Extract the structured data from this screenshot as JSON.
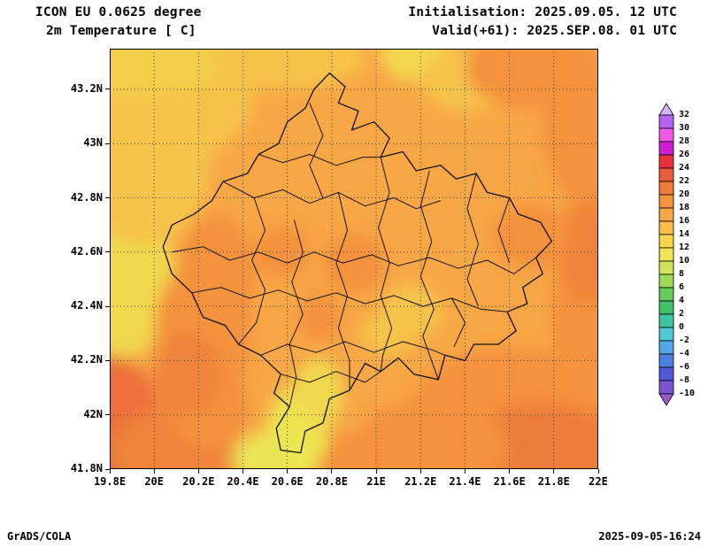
{
  "header": {
    "line1": "ICON EU 0.0625 degree",
    "line2": "2m Temperature [ C]",
    "init_line": "Initialisation: 2025.09.05. 12 UTC",
    "valid_line": "Valid(+61): 2025.SEP.08. 01 UTC"
  },
  "footer": {
    "left": "GrADS/COLA",
    "right": "2025-09-05-16:24"
  },
  "chart_data": {
    "type": "heatmap",
    "title": "ICON EU 0.0625 degree 2m Temperature [ C]",
    "model": "ICON EU",
    "resolution_degree": "0.0625",
    "variable": "2m Temperature [ C]",
    "initialisation": "2025.09.05. 12 UTC",
    "valid": "2025.SEP.08. 01 UTC",
    "forecast_hour": "+61",
    "x_axis": {
      "label": "longitude",
      "range": [
        19.8,
        22.0
      ],
      "values": [
        19.8,
        20,
        20.2,
        20.4,
        20.6,
        20.8,
        21,
        21.2,
        21.4,
        21.6,
        21.8,
        22
      ],
      "labels": [
        "19.8E",
        "20E",
        "20.2E",
        "20.4E",
        "20.6E",
        "20.8E",
        "21E",
        "21.2E",
        "21.4E",
        "21.6E",
        "21.8E",
        "22E"
      ]
    },
    "y_axis": {
      "label": "latitude",
      "range": [
        41.8,
        43.35
      ],
      "values": [
        41.8,
        42,
        42.2,
        42.4,
        42.6,
        42.8,
        43,
        43.2
      ],
      "labels": [
        "41.8N",
        "42N",
        "42.2N",
        "42.4N",
        "42.6N",
        "42.8N",
        "43N",
        "43.2N"
      ]
    },
    "grid": {
      "style": "dotted",
      "lon_lines": [
        20,
        20.2,
        20.4,
        20.6,
        20.8,
        21,
        21.2,
        21.4,
        21.6,
        21.8
      ],
      "lat_lines": [
        42,
        42.2,
        42.4,
        42.6,
        42.8,
        43,
        43.2
      ]
    },
    "colorbar": {
      "unit": "C",
      "levels": [
        32,
        30,
        28,
        26,
        24,
        22,
        20,
        18,
        16,
        14,
        12,
        10,
        8,
        6,
        4,
        2,
        0,
        -2,
        -4,
        -6,
        -8,
        -10
      ],
      "above_color": "#d8b4f8",
      "segment_colors": [
        "#b565f0",
        "#ef5ae8",
        "#cc1fd4",
        "#e8323c",
        "#ea5c3c",
        "#ee7c3a",
        "#f4923e",
        "#f8a746",
        "#fabf4b",
        "#f7d74e",
        "#f0e655",
        "#cfe25a",
        "#9ed95c",
        "#66cc5e",
        "#3fbf6a",
        "#3ec49e",
        "#4ec8d4",
        "#52a9e4",
        "#4d7fe0",
        "#5158d8",
        "#7a55d0"
      ],
      "below_color": "#9b59c8"
    },
    "field": {
      "base_color": "#f8a746",
      "base_level": "16-18 C",
      "blobs": [
        [
          19.72,
          43.05,
          0.3,
          0.5,
          "#f0d94f"
        ],
        [
          19.75,
          42.7,
          0.22,
          0.4,
          "#eee34f"
        ],
        [
          19.82,
          42.5,
          0.28,
          0.3,
          "#f0d94f"
        ],
        [
          19.95,
          42.92,
          0.3,
          0.3,
          "#f6c44a"
        ],
        [
          20.05,
          43.2,
          0.4,
          0.28,
          "#f6c44a"
        ],
        [
          19.9,
          43.33,
          0.45,
          0.15,
          "#f2cf4c"
        ],
        [
          20.6,
          43.32,
          0.35,
          0.12,
          "#f6c44a"
        ],
        [
          21.18,
          43.33,
          0.16,
          0.1,
          "#f2d94e"
        ],
        [
          21.4,
          43.24,
          0.2,
          0.12,
          "#f6c44a"
        ],
        [
          21.7,
          43.28,
          0.3,
          0.15,
          "#f4923e"
        ],
        [
          21.97,
          43.05,
          0.22,
          0.28,
          "#f4923e"
        ],
        [
          21.97,
          42.4,
          0.18,
          0.45,
          "#f4923e"
        ],
        [
          21.95,
          42.6,
          0.12,
          0.18,
          "#ef843a"
        ],
        [
          21.7,
          42.66,
          0.18,
          0.12,
          "#f4923e"
        ],
        [
          21.6,
          42.0,
          0.45,
          0.25,
          "#f4923e"
        ],
        [
          21.75,
          41.86,
          0.35,
          0.18,
          "#ee7c3a"
        ],
        [
          21.25,
          41.88,
          0.35,
          0.18,
          "#f4923e"
        ],
        [
          21.05,
          41.82,
          0.45,
          0.12,
          "#f4923e"
        ],
        [
          19.85,
          41.82,
          0.28,
          0.2,
          "#e8463c"
        ],
        [
          19.8,
          42.0,
          0.22,
          0.22,
          "#ee6f3a"
        ],
        [
          20.1,
          41.85,
          0.3,
          0.18,
          "#ef843a"
        ],
        [
          20.25,
          42.02,
          0.18,
          0.15,
          "#f4923e"
        ],
        [
          20.22,
          42.3,
          0.22,
          0.28,
          "#f4923e"
        ],
        [
          20.28,
          42.52,
          0.18,
          0.22,
          "#f4923e"
        ],
        [
          20.15,
          42.15,
          0.15,
          0.15,
          "#ef843a"
        ],
        [
          20.9,
          42.56,
          0.14,
          0.11,
          "#f4923e"
        ],
        [
          20.58,
          42.6,
          0.12,
          0.1,
          "#f4923e"
        ],
        [
          20.74,
          42.36,
          0.1,
          0.09,
          "#f4923e"
        ],
        [
          20.65,
          41.95,
          0.14,
          0.16,
          "#eee34f"
        ],
        [
          20.74,
          42.08,
          0.11,
          0.13,
          "#f0d94f"
        ],
        [
          20.55,
          41.84,
          0.2,
          0.1,
          "#ebe552"
        ],
        [
          21.16,
          42.38,
          0.14,
          0.1,
          "#f6c44a"
        ],
        [
          21.05,
          42.3,
          0.12,
          0.08,
          "#f6c44a"
        ]
      ]
    },
    "boundaries": {
      "outline": [
        [
          20.79,
          43.26
        ],
        [
          20.86,
          43.21
        ],
        [
          20.83,
          43.15
        ],
        [
          20.92,
          43.12
        ],
        [
          20.89,
          43.05
        ],
        [
          20.99,
          43.08
        ],
        [
          21.06,
          43.02
        ],
        [
          21.02,
          42.95
        ],
        [
          21.12,
          42.97
        ],
        [
          21.18,
          42.9
        ],
        [
          21.29,
          42.92
        ],
        [
          21.36,
          42.87
        ],
        [
          21.45,
          42.89
        ],
        [
          21.5,
          42.82
        ],
        [
          21.6,
          42.8
        ],
        [
          21.64,
          42.74
        ],
        [
          21.74,
          42.71
        ],
        [
          21.79,
          42.64
        ],
        [
          21.72,
          42.58
        ],
        [
          21.75,
          42.52
        ],
        [
          21.66,
          42.47
        ],
        [
          21.68,
          42.41
        ],
        [
          21.59,
          42.38
        ],
        [
          21.63,
          42.31
        ],
        [
          21.55,
          42.26
        ],
        [
          21.44,
          42.26
        ],
        [
          21.4,
          42.2
        ],
        [
          21.31,
          42.22
        ],
        [
          21.28,
          42.13
        ],
        [
          21.17,
          42.15
        ],
        [
          21.1,
          42.21
        ],
        [
          21.02,
          42.16
        ],
        [
          20.95,
          42.19
        ],
        [
          20.88,
          42.09
        ],
        [
          20.79,
          42.06
        ],
        [
          20.76,
          41.97
        ],
        [
          20.68,
          41.94
        ],
        [
          20.66,
          41.86
        ],
        [
          20.57,
          41.87
        ],
        [
          20.55,
          41.95
        ],
        [
          20.61,
          42.03
        ],
        [
          20.54,
          42.08
        ],
        [
          20.57,
          42.15
        ],
        [
          20.48,
          42.22
        ],
        [
          20.38,
          42.26
        ],
        [
          20.32,
          42.33
        ],
        [
          20.22,
          42.36
        ],
        [
          20.17,
          42.45
        ],
        [
          20.08,
          42.52
        ],
        [
          20.04,
          42.62
        ],
        [
          20.08,
          42.7
        ],
        [
          20.18,
          42.74
        ],
        [
          20.26,
          42.79
        ],
        [
          20.31,
          42.86
        ],
        [
          20.42,
          42.89
        ],
        [
          20.47,
          42.96
        ],
        [
          20.56,
          43.0
        ],
        [
          20.6,
          43.08
        ],
        [
          20.68,
          43.13
        ],
        [
          20.72,
          43.2
        ]
      ],
      "internal": [
        [
          [
            20.31,
            42.86
          ],
          [
            20.45,
            42.8
          ],
          [
            20.58,
            42.83
          ],
          [
            20.7,
            42.78
          ],
          [
            20.83,
            42.82
          ],
          [
            20.95,
            42.77
          ],
          [
            21.08,
            42.8
          ],
          [
            21.18,
            42.76
          ],
          [
            21.29,
            42.79
          ]
        ],
        [
          [
            20.08,
            42.6
          ],
          [
            20.22,
            42.62
          ],
          [
            20.34,
            42.57
          ],
          [
            20.47,
            42.6
          ],
          [
            20.6,
            42.56
          ],
          [
            20.72,
            42.6
          ],
          [
            20.85,
            42.56
          ],
          [
            20.98,
            42.59
          ],
          [
            21.1,
            42.55
          ],
          [
            21.24,
            42.58
          ],
          [
            21.37,
            42.54
          ],
          [
            21.5,
            42.57
          ],
          [
            21.62,
            42.52
          ],
          [
            21.72,
            42.58
          ]
        ],
        [
          [
            20.17,
            42.45
          ],
          [
            20.3,
            42.47
          ],
          [
            20.43,
            42.43
          ],
          [
            20.56,
            42.46
          ],
          [
            20.69,
            42.42
          ],
          [
            20.82,
            42.45
          ],
          [
            20.95,
            42.41
          ],
          [
            21.08,
            42.44
          ],
          [
            21.21,
            42.4
          ],
          [
            21.34,
            42.43
          ],
          [
            21.47,
            42.39
          ],
          [
            21.59,
            42.38
          ]
        ],
        [
          [
            20.48,
            42.22
          ],
          [
            20.6,
            42.26
          ],
          [
            20.73,
            42.23
          ],
          [
            20.86,
            42.27
          ],
          [
            20.99,
            42.23
          ],
          [
            21.12,
            42.27
          ],
          [
            21.25,
            42.24
          ],
          [
            21.31,
            42.22
          ]
        ],
        [
          [
            20.45,
            42.8
          ],
          [
            20.5,
            42.68
          ],
          [
            20.44,
            42.57
          ],
          [
            20.5,
            42.46
          ],
          [
            20.46,
            42.34
          ],
          [
            20.38,
            42.26
          ]
        ],
        [
          [
            20.63,
            42.72
          ],
          [
            20.67,
            42.6
          ],
          [
            20.62,
            42.49
          ],
          [
            20.67,
            42.37
          ],
          [
            20.61,
            42.26
          ],
          [
            20.64,
            42.14
          ],
          [
            20.61,
            42.03
          ]
        ],
        [
          [
            20.83,
            42.82
          ],
          [
            20.87,
            42.68
          ],
          [
            20.82,
            42.56
          ],
          [
            20.87,
            42.44
          ],
          [
            20.83,
            42.32
          ],
          [
            20.88,
            42.2
          ],
          [
            20.88,
            42.09
          ]
        ],
        [
          [
            21.02,
            42.95
          ],
          [
            21.06,
            42.82
          ],
          [
            21.01,
            42.69
          ],
          [
            21.06,
            42.56
          ],
          [
            21.02,
            42.44
          ],
          [
            21.07,
            42.32
          ],
          [
            21.03,
            42.22
          ],
          [
            21.02,
            42.16
          ]
        ],
        [
          [
            21.24,
            42.9
          ],
          [
            21.2,
            42.77
          ],
          [
            21.25,
            42.64
          ],
          [
            21.2,
            42.51
          ],
          [
            21.26,
            42.39
          ],
          [
            21.21,
            42.29
          ],
          [
            21.28,
            42.13
          ]
        ],
        [
          [
            21.45,
            42.89
          ],
          [
            21.41,
            42.76
          ],
          [
            21.46,
            42.63
          ],
          [
            21.41,
            42.5
          ],
          [
            21.46,
            42.4
          ]
        ],
        [
          [
            21.6,
            42.8
          ],
          [
            21.55,
            42.68
          ],
          [
            21.6,
            42.56
          ]
        ],
        [
          [
            20.7,
            43.15
          ],
          [
            20.76,
            43.03
          ],
          [
            20.7,
            42.92
          ],
          [
            20.76,
            42.8
          ]
        ],
        [
          [
            20.47,
            42.96
          ],
          [
            20.58,
            42.93
          ],
          [
            20.7,
            42.96
          ],
          [
            20.82,
            42.92
          ],
          [
            20.94,
            42.95
          ],
          [
            21.02,
            42.95
          ]
        ],
        [
          [
            21.34,
            42.43
          ],
          [
            21.4,
            42.34
          ],
          [
            21.35,
            42.25
          ]
        ],
        [
          [
            20.57,
            42.15
          ],
          [
            20.7,
            42.12
          ],
          [
            20.82,
            42.16
          ],
          [
            20.95,
            42.12
          ],
          [
            21.02,
            42.16
          ]
        ]
      ]
    }
  }
}
